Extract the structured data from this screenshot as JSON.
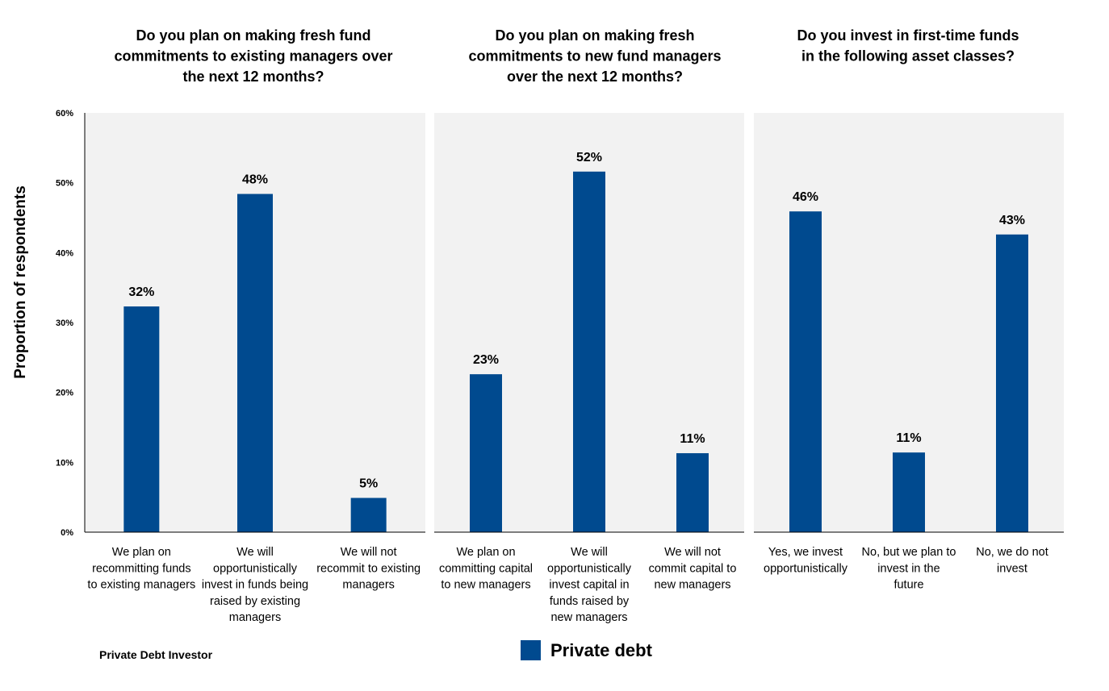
{
  "source_label": "Private Debt Investor",
  "legend": {
    "label": "Private debt"
  },
  "colors": {
    "bar": "#004a8f",
    "panel_bg": "#f2f2f2",
    "axis": "#000000"
  },
  "chart_data": [
    {
      "type": "bar",
      "title": "Do you plan on making fresh fund commitments to existing managers over the next 12 months?",
      "title_lines": [
        "Do you plan on making fresh fund",
        "commitments to existing managers over",
        "the next 12 months?"
      ],
      "ylabel": "Proportion of respondents",
      "ylim": [
        0,
        60
      ],
      "yticks": [
        "0%",
        "10%",
        "20%",
        "30%",
        "40%",
        "50%",
        "60%"
      ],
      "series": [
        {
          "name": "Private debt",
          "values": [
            32.3,
            48.4,
            4.9
          ]
        }
      ],
      "data_labels": [
        "32%",
        "48%",
        "5%"
      ],
      "categories": [
        "We plan on recommitting funds to existing managers",
        "We will opportunistically invest in funds being raised by existing managers",
        "We will not recommit to existing managers"
      ],
      "category_lines": [
        [
          "We plan on",
          "recommitting funds",
          "to existing managers"
        ],
        [
          "We will",
          "opportunistically",
          "invest in funds being",
          "raised by existing",
          "managers"
        ],
        [
          "We will not",
          "recommit to existing",
          "managers"
        ]
      ]
    },
    {
      "type": "bar",
      "title": "Do you plan on making fresh commitments to new fund managers over the next 12 months?",
      "title_lines": [
        "Do you plan on making fresh",
        "commitments to new fund managers",
        "over the next 12 months?"
      ],
      "ylim": [
        0,
        60
      ],
      "series": [
        {
          "name": "Private debt",
          "values": [
            22.6,
            51.6,
            11.3
          ]
        }
      ],
      "data_labels": [
        "23%",
        "52%",
        "11%"
      ],
      "categories": [
        "We plan on committing capital to new managers",
        "We will opportunistically invest capital in funds raised by new managers",
        "We will not commit capital to new managers"
      ],
      "category_lines": [
        [
          "We plan on",
          "committing capital",
          "to new managers"
        ],
        [
          "We will",
          "opportunistically",
          "invest capital in",
          "funds raised by",
          "new managers"
        ],
        [
          "We will not",
          "commit capital to",
          "new managers"
        ]
      ]
    },
    {
      "type": "bar",
      "title": "Do you invest in first-time funds in the following asset classes?",
      "title_lines": [
        "Do you invest in first-time funds",
        "in the following asset classes?"
      ],
      "ylim": [
        0,
        60
      ],
      "series": [
        {
          "name": "Private debt",
          "values": [
            45.9,
            11.4,
            42.6
          ]
        }
      ],
      "data_labels": [
        "46%",
        "11%",
        "43%"
      ],
      "categories": [
        "Yes, we invest opportunistically",
        "No, but we plan to invest in the future",
        "No, we do not invest"
      ],
      "category_lines": [
        [
          "Yes, we invest",
          "opportunistically"
        ],
        [
          "No, but we plan to",
          "invest in the",
          "future"
        ],
        [
          "No, we do not",
          "invest"
        ]
      ]
    }
  ]
}
